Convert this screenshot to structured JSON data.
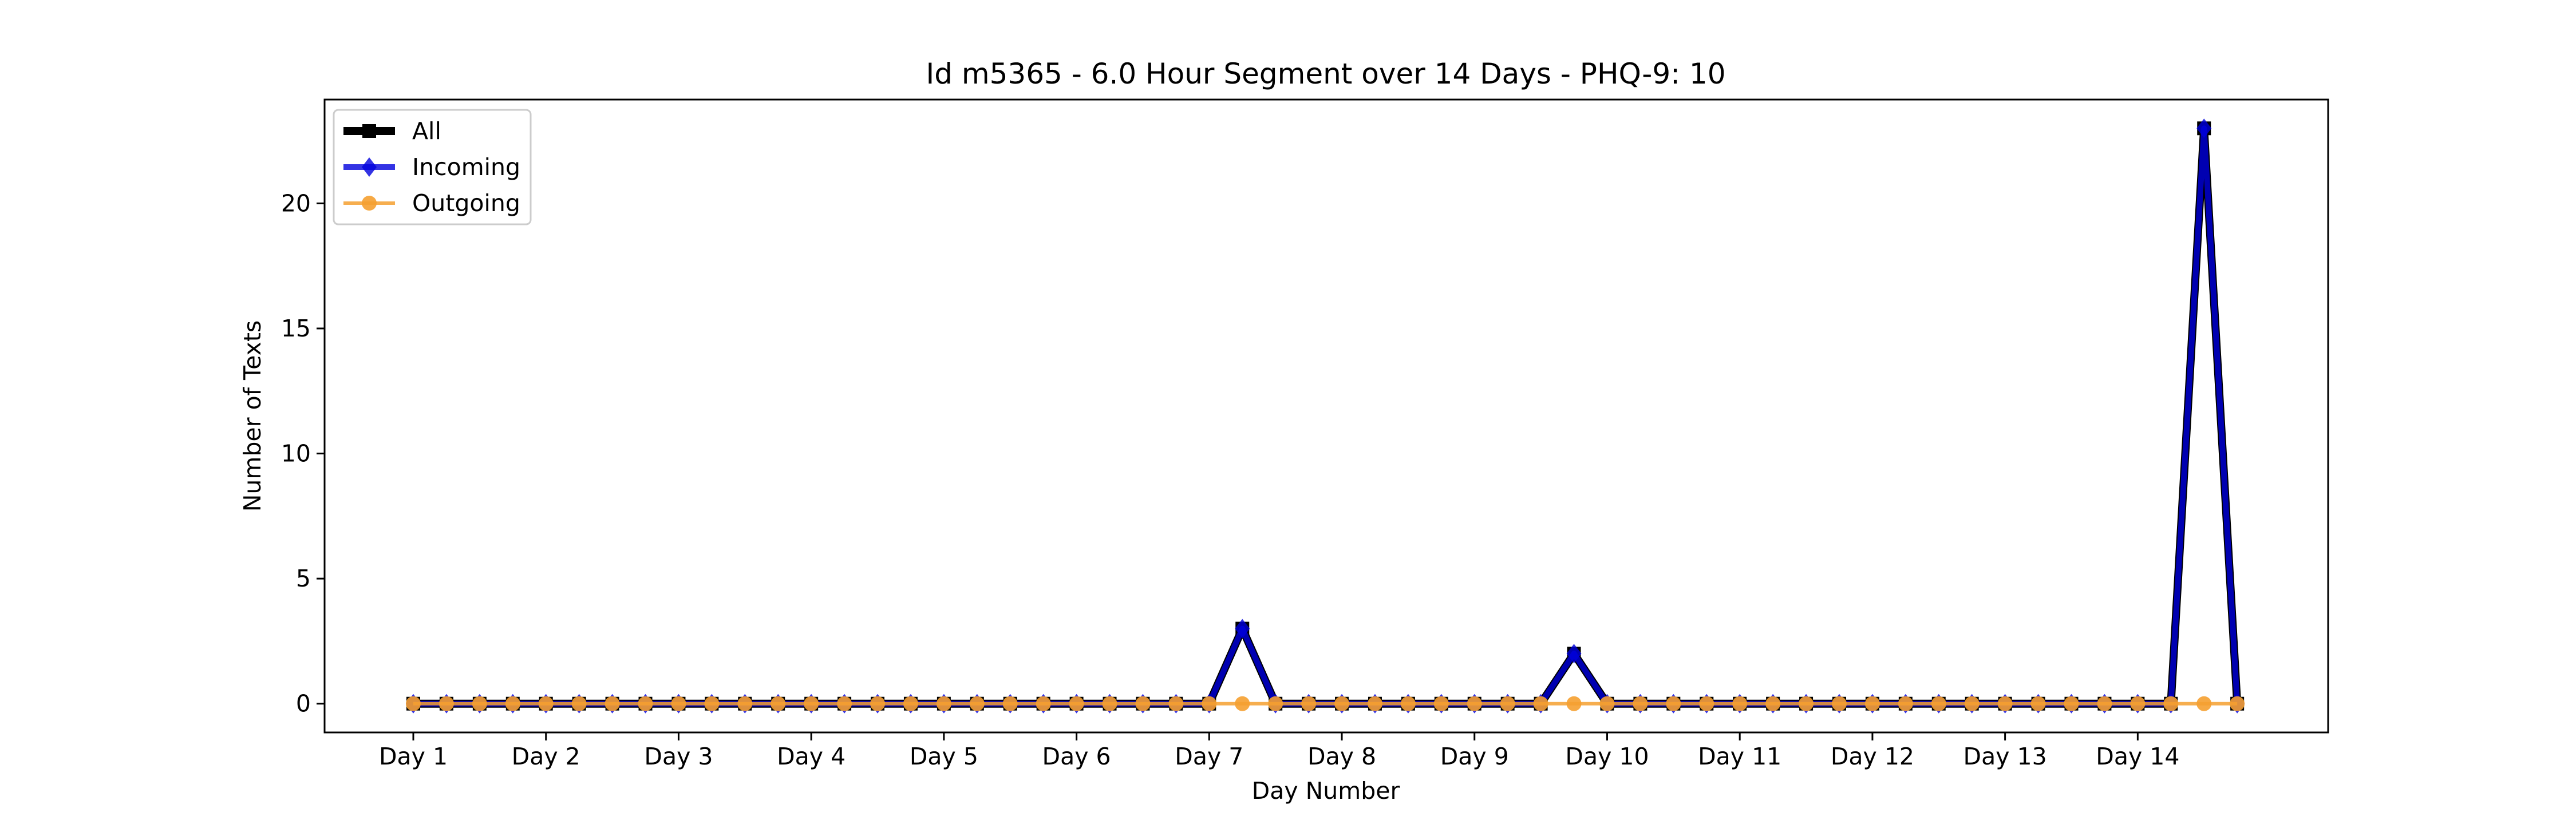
{
  "chart_data": {
    "type": "line",
    "title": "Id m5365 - 6.0 Hour Segment over 14 Days - PHQ-9: 10",
    "xlabel": "Day Number",
    "ylabel": "Number of Texts",
    "x_tick_labels": [
      "Day 1",
      "Day 2",
      "Day 3",
      "Day 4",
      "Day 5",
      "Day 6",
      "Day 7",
      "Day 8",
      "Day 9",
      "Day 10",
      "Day 11",
      "Day 12",
      "Day 13",
      "Day 14"
    ],
    "y_ticks": [
      0,
      5,
      10,
      15,
      20
    ],
    "ylim": [
      -1.15,
      24.15
    ],
    "grid": false,
    "legend_position": "top-left",
    "series": [
      {
        "name": "All",
        "color": "#000000",
        "marker": "square",
        "values": [
          0,
          0,
          0,
          0,
          0,
          0,
          0,
          0,
          0,
          0,
          0,
          0,
          0,
          0,
          0,
          0,
          0,
          0,
          0,
          0,
          0,
          0,
          0,
          0,
          0,
          3,
          0,
          0,
          0,
          0,
          0,
          0,
          0,
          0,
          0,
          2,
          0,
          0,
          0,
          0,
          0,
          0,
          0,
          0,
          0,
          0,
          0,
          0,
          0,
          0,
          0,
          0,
          0,
          0,
          23,
          0
        ]
      },
      {
        "name": "Incoming",
        "color": "#0000dd",
        "marker": "diamond",
        "values": [
          0,
          0,
          0,
          0,
          0,
          0,
          0,
          0,
          0,
          0,
          0,
          0,
          0,
          0,
          0,
          0,
          0,
          0,
          0,
          0,
          0,
          0,
          0,
          0,
          0,
          3,
          0,
          0,
          0,
          0,
          0,
          0,
          0,
          0,
          0,
          2,
          0,
          0,
          0,
          0,
          0,
          0,
          0,
          0,
          0,
          0,
          0,
          0,
          0,
          0,
          0,
          0,
          0,
          0,
          23,
          0
        ]
      },
      {
        "name": "Outgoing",
        "color": "#f5a030",
        "marker": "circle",
        "values": [
          0,
          0,
          0,
          0,
          0,
          0,
          0,
          0,
          0,
          0,
          0,
          0,
          0,
          0,
          0,
          0,
          0,
          0,
          0,
          0,
          0,
          0,
          0,
          0,
          0,
          0,
          0,
          0,
          0,
          0,
          0,
          0,
          0,
          0,
          0,
          0,
          0,
          0,
          0,
          0,
          0,
          0,
          0,
          0,
          0,
          0,
          0,
          0,
          0,
          0,
          0,
          0,
          0,
          0,
          0,
          0
        ]
      }
    ]
  }
}
